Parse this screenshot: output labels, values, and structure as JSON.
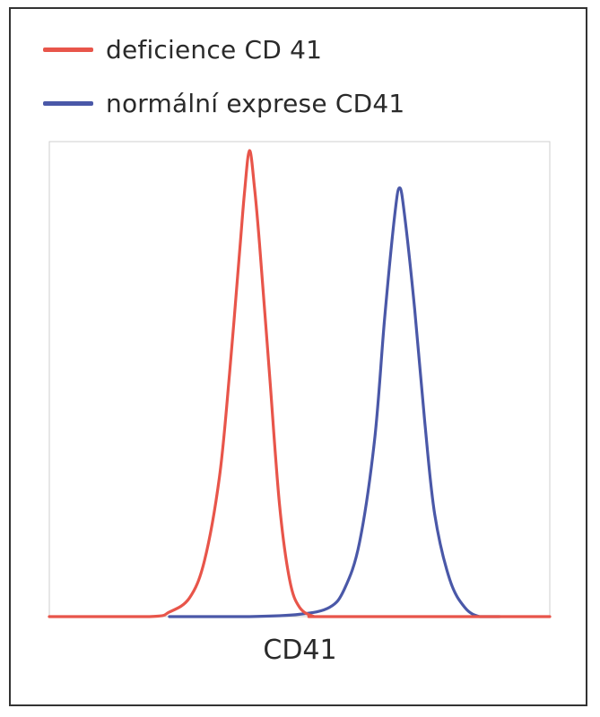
{
  "chart_data": {
    "type": "line",
    "xlabel": "CD41",
    "ylabel": "",
    "title": "",
    "xlim": [
      0,
      100
    ],
    "ylim": [
      0,
      100
    ],
    "grid": false,
    "legend_position": "top-left",
    "series": [
      {
        "name": "deficience CD 41",
        "color": "#e8554a",
        "peak_x": 40,
        "peak_y": 100,
        "x": [
          0,
          20,
          24,
          28,
          31,
          34,
          36,
          38,
          39,
          40,
          41,
          42,
          44,
          46,
          48,
          50,
          53,
          56,
          100
        ],
        "y": [
          0,
          0,
          1,
          4,
          12,
          30,
          52,
          78,
          91,
          100,
          92,
          80,
          52,
          24,
          8,
          2,
          0,
          0,
          0
        ]
      },
      {
        "name": "normální exprese CD41",
        "color": "#4a58a8",
        "peak_x": 70,
        "peak_y": 92,
        "x": [
          24,
          40,
          50,
          56,
          59,
          62,
          65,
          67,
          69,
          70,
          71,
          73,
          75,
          77,
          80,
          83,
          86,
          90
        ],
        "y": [
          0,
          0,
          0.5,
          2,
          6,
          16,
          38,
          64,
          86,
          92,
          86,
          66,
          42,
          22,
          8,
          2,
          0,
          0
        ]
      }
    ]
  }
}
